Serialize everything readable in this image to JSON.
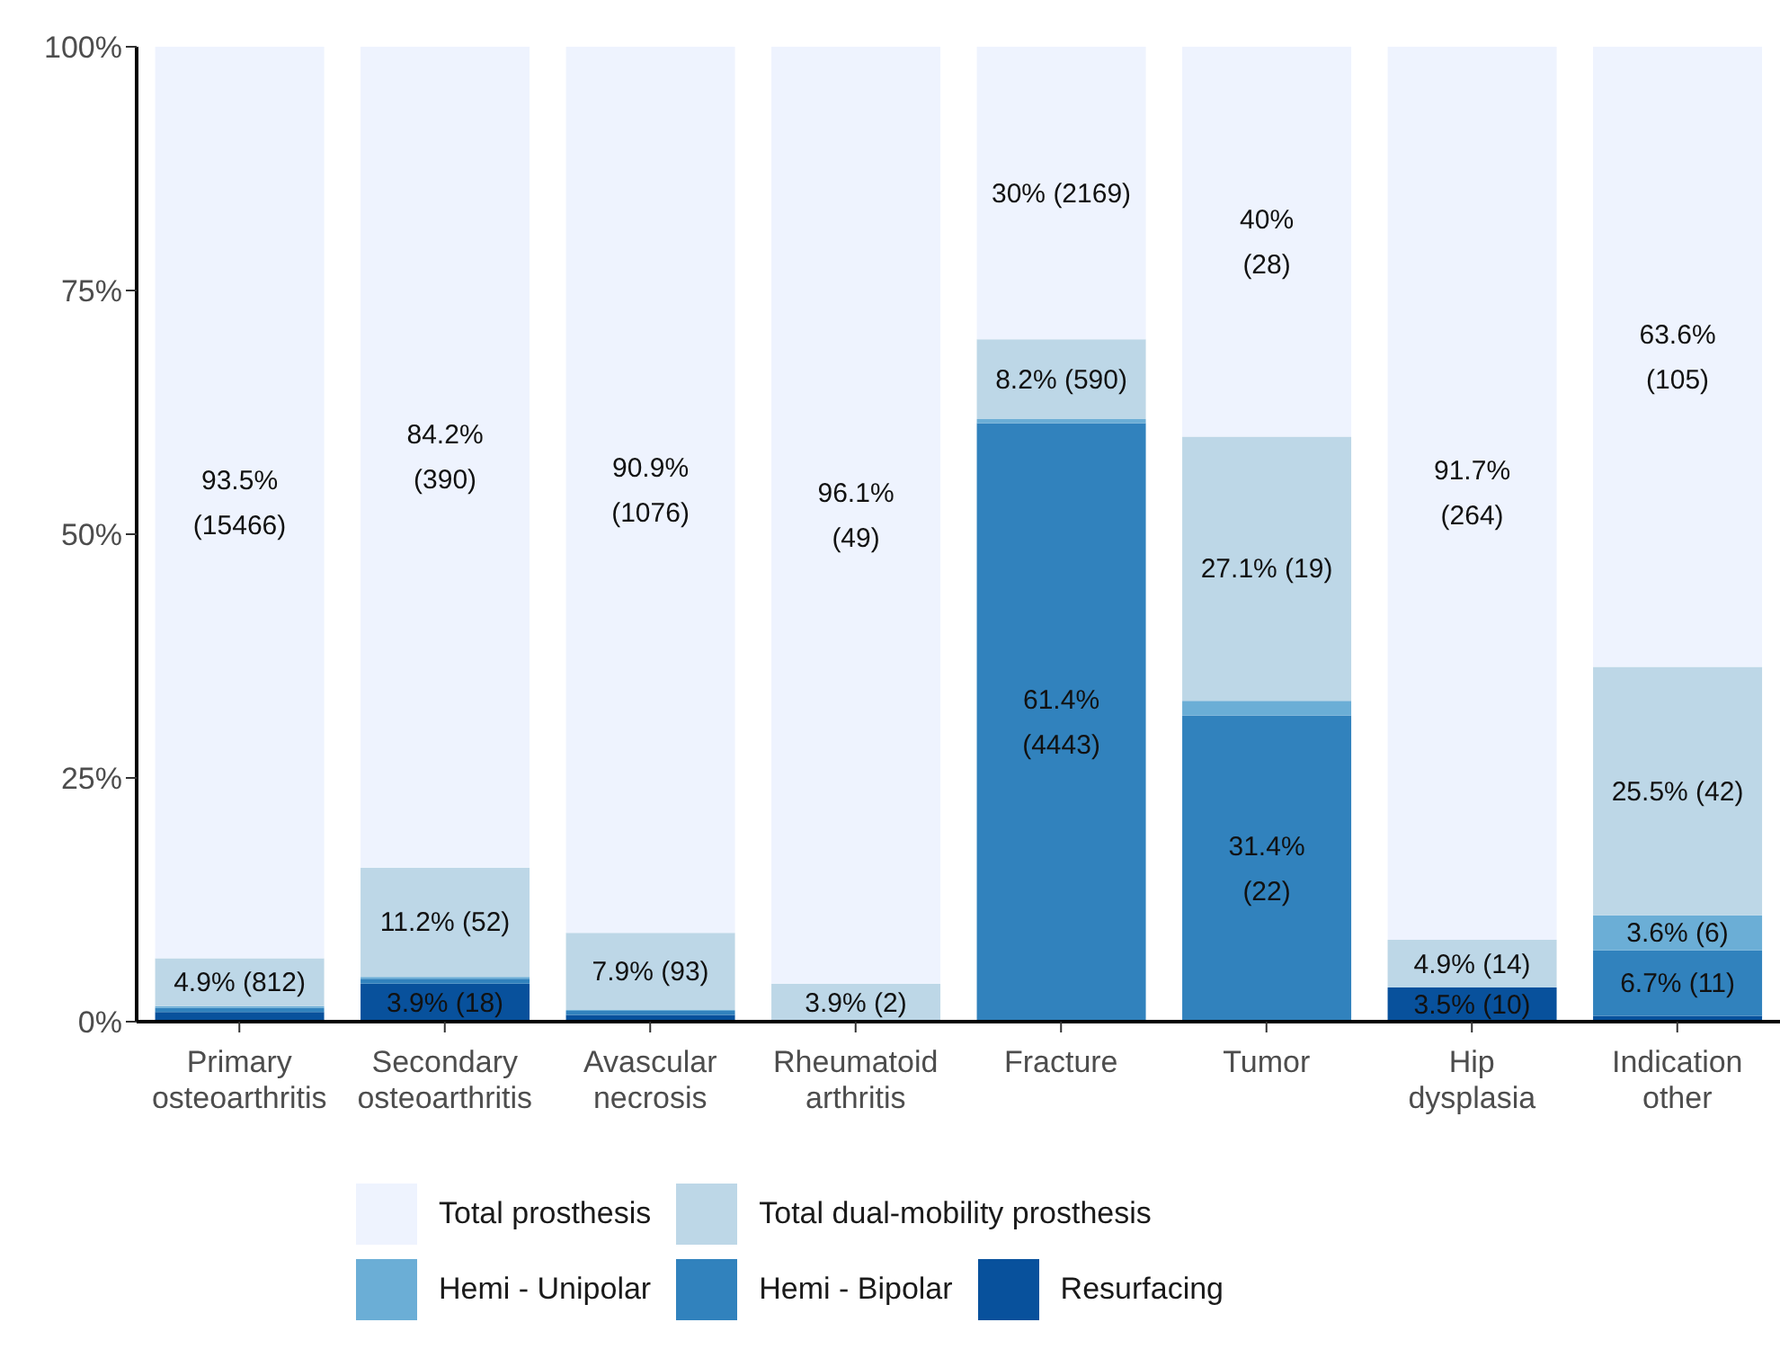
{
  "chart_data": {
    "type": "bar",
    "stacked": true,
    "categories": [
      "Primary osteoarthritis",
      "Secondary osteoarthritis",
      "Avascular necrosis",
      "Rheumatoid arthritis",
      "Fracture",
      "Tumor",
      "Hip dysplasia",
      "Indication other"
    ],
    "series": [
      {
        "name": "Resurfacing",
        "color": "#08519c",
        "values": [
          1.0,
          3.9,
          0.7,
          0,
          0,
          0,
          3.5,
          0.6
        ],
        "value_labels": [
          null,
          "3.9% (18)",
          null,
          null,
          null,
          null,
          "3.5% (10)",
          null
        ]
      },
      {
        "name": "Hemi - Bipolar",
        "color": "#3182bd",
        "values": [
          0.4,
          0.5,
          0.4,
          0,
          61.4,
          31.4,
          0,
          6.7
        ],
        "value_labels": [
          null,
          null,
          null,
          null,
          "61.4%\n(4443)",
          "31.4%\n(22)",
          null,
          "6.7% (11)"
        ]
      },
      {
        "name": "Hemi - Unipolar",
        "color": "#6baed6",
        "values": [
          0.2,
          0.2,
          0.1,
          0,
          0.4,
          1.5,
          0,
          3.6
        ],
        "value_labels": [
          null,
          null,
          null,
          null,
          null,
          null,
          null,
          "3.6% (6)"
        ]
      },
      {
        "name": "Total dual-mobility prosthesis",
        "color": "#bdd7e7",
        "values": [
          4.9,
          11.2,
          7.9,
          3.9,
          8.2,
          27.1,
          4.9,
          25.5
        ],
        "value_labels": [
          "4.9% (812)",
          "11.2% (52)",
          "7.9% (93)",
          "3.9% (2)",
          "8.2% (590)",
          "27.1% (19)",
          "4.9% (14)",
          "25.5% (42)"
        ]
      },
      {
        "name": "Total prosthesis",
        "color": "#eef3fe",
        "values": [
          93.5,
          84.2,
          90.9,
          96.1,
          30,
          40,
          91.7,
          63.6
        ],
        "value_labels": [
          "93.5%\n(15466)",
          "84.2%\n(390)",
          "90.9%\n(1076)",
          "96.1%\n(49)",
          "30% (2169)",
          "40%\n(28)",
          "91.7%\n(264)",
          "63.6%\n(105)"
        ]
      }
    ],
    "ylim": [
      0,
      100
    ],
    "yticks": [
      {
        "value": 0,
        "label": "0%"
      },
      {
        "value": 25,
        "label": "25%"
      },
      {
        "value": 50,
        "label": "50%"
      },
      {
        "value": 75,
        "label": "75%"
      },
      {
        "value": 100,
        "label": "100%"
      }
    ],
    "grid": false,
    "legend": "bottom"
  }
}
